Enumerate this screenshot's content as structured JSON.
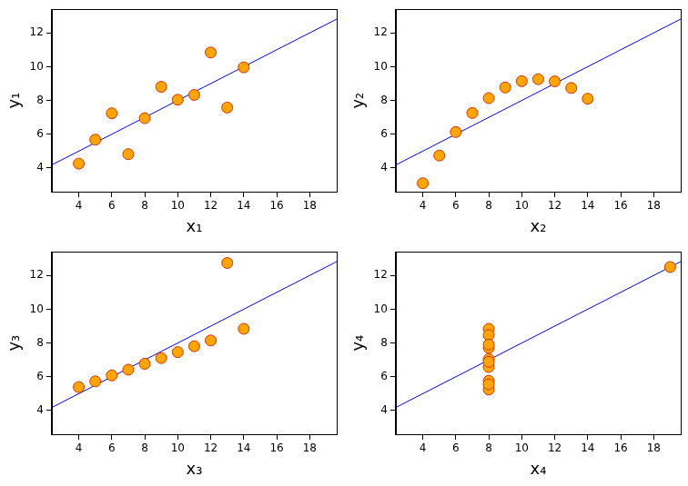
{
  "chart_data": [
    {
      "type": "scatter",
      "x_label": "x₁",
      "y_label": "y₁",
      "xlim": [
        2.36,
        19.64
      ],
      "ylim": [
        2.6,
        13.4
      ],
      "xticks": [
        4,
        6,
        8,
        10,
        12,
        14,
        16,
        18
      ],
      "yticks": [
        4,
        6,
        8,
        10,
        12
      ],
      "grid": false,
      "series": [
        {
          "type": "scatter",
          "color": "#ffa500",
          "marker": "circle",
          "x": [
            10,
            8,
            13,
            9,
            11,
            14,
            6,
            4,
            12,
            7,
            5
          ],
          "values": [
            8.04,
            6.95,
            7.58,
            8.81,
            8.33,
            9.96,
            7.24,
            4.26,
            10.84,
            4.82,
            5.68
          ]
        },
        {
          "type": "line",
          "color": "#0000ff",
          "x": [
            2.36,
            19.64
          ],
          "values": [
            4.18,
            12.82
          ]
        }
      ]
    },
    {
      "type": "scatter",
      "x_label": "x₂",
      "y_label": "y₂",
      "xlim": [
        2.36,
        19.64
      ],
      "ylim": [
        2.6,
        13.4
      ],
      "xticks": [
        4,
        6,
        8,
        10,
        12,
        14,
        16,
        18
      ],
      "yticks": [
        4,
        6,
        8,
        10,
        12
      ],
      "grid": false,
      "series": [
        {
          "type": "scatter",
          "color": "#ffa500",
          "marker": "circle",
          "x": [
            10,
            8,
            13,
            9,
            11,
            14,
            6,
            4,
            12,
            7,
            5
          ],
          "values": [
            9.14,
            8.14,
            8.74,
            8.77,
            9.26,
            8.1,
            6.13,
            3.1,
            9.13,
            7.26,
            4.74
          ]
        },
        {
          "type": "line",
          "color": "#0000ff",
          "x": [
            2.36,
            19.64
          ],
          "values": [
            4.18,
            12.82
          ]
        }
      ]
    },
    {
      "type": "scatter",
      "x_label": "x₃",
      "y_label": "y₃",
      "xlim": [
        2.36,
        19.64
      ],
      "ylim": [
        2.6,
        13.4
      ],
      "xticks": [
        4,
        6,
        8,
        10,
        12,
        14,
        16,
        18
      ],
      "yticks": [
        4,
        6,
        8,
        10,
        12
      ],
      "grid": false,
      "series": [
        {
          "type": "scatter",
          "color": "#ffa500",
          "marker": "circle",
          "x": [
            10,
            8,
            13,
            9,
            11,
            14,
            6,
            4,
            12,
            7,
            5
          ],
          "values": [
            7.46,
            6.77,
            12.74,
            7.11,
            7.81,
            8.84,
            6.08,
            5.39,
            8.15,
            6.42,
            5.73
          ]
        },
        {
          "type": "line",
          "color": "#0000ff",
          "x": [
            2.36,
            19.64
          ],
          "values": [
            4.18,
            12.82
          ]
        }
      ]
    },
    {
      "type": "scatter",
      "x_label": "x₄",
      "y_label": "y₄",
      "xlim": [
        2.36,
        19.64
      ],
      "ylim": [
        2.6,
        13.4
      ],
      "xticks": [
        4,
        6,
        8,
        10,
        12,
        14,
        16,
        18
      ],
      "yticks": [
        4,
        6,
        8,
        10,
        12
      ],
      "grid": false,
      "series": [
        {
          "type": "scatter",
          "color": "#ffa500",
          "marker": "circle",
          "x": [
            8,
            8,
            8,
            8,
            8,
            8,
            8,
            19,
            8,
            8,
            8
          ],
          "values": [
            6.58,
            5.76,
            7.71,
            8.84,
            8.47,
            7.04,
            5.25,
            12.5,
            5.56,
            7.91,
            6.89
          ]
        },
        {
          "type": "line",
          "color": "#0000ff",
          "x": [
            2.36,
            19.64
          ],
          "values": [
            4.18,
            12.82
          ]
        }
      ]
    }
  ]
}
